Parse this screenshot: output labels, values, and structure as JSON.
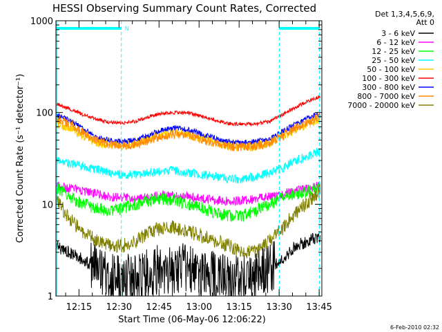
{
  "chart_data": {
    "type": "line",
    "title": "HESSI Observing Summary Count Rates, Corrected",
    "xlabel": "Start Time (06-May-06 12:06:22)",
    "ylabel": "Corrected Count Rate (s⁻¹ detector⁻¹)",
    "yscale": "log",
    "ylim": [
      1,
      1000
    ],
    "xlim": [
      "12:06:22",
      "13:46:00"
    ],
    "x_ticks": [
      "12:15",
      "12:30",
      "12:45",
      "13:00",
      "13:15",
      "13:30",
      "13:45"
    ],
    "y_ticks": [
      "1",
      "10",
      "100",
      "1000"
    ],
    "legend_header": [
      "Det 1,3,4,5,6,9,",
      "Att 0"
    ],
    "legend_position": "right",
    "x_minutes": [
      0,
      5,
      10,
      15,
      20,
      25,
      30,
      35,
      40,
      45,
      50,
      55,
      60,
      65,
      70,
      75,
      80,
      85,
      90,
      95,
      99
    ],
    "series": [
      {
        "name": "3 - 6 keV",
        "color": "#000000",
        "values": [
          3.5,
          3.0,
          2.5,
          2.0,
          1.6,
          1.5,
          1.6,
          1.8,
          2.0,
          2.0,
          2.0,
          1.8,
          1.6,
          1.5,
          1.6,
          1.8,
          2.0,
          2.5,
          3.5,
          4.0,
          4.5
        ]
      },
      {
        "name": "6 - 12 keV",
        "color": "#ff00ff",
        "values": [
          16,
          15,
          14,
          13,
          12,
          12,
          11.5,
          12,
          12.5,
          12.5,
          12,
          11.5,
          11,
          10.8,
          11,
          11.5,
          12,
          13,
          14,
          15,
          16
        ]
      },
      {
        "name": "12 - 25 keV",
        "color": "#00ff00",
        "values": [
          15,
          12,
          10,
          9,
          8.5,
          9,
          10,
          11,
          11.5,
          11,
          10,
          9,
          8,
          7.5,
          7.5,
          8.5,
          10,
          11.5,
          13,
          14,
          15
        ]
      },
      {
        "name": "25 - 50 keV",
        "color": "#00ffff",
        "values": [
          30,
          28,
          26,
          24,
          22,
          21,
          21,
          22,
          23,
          23,
          22,
          21,
          20,
          19,
          19,
          20,
          22,
          25,
          30,
          34,
          38
        ]
      },
      {
        "name": "50 - 100 keV",
        "color": "#ffcc00",
        "values": [
          75,
          68,
          55,
          47,
          45,
          44,
          46,
          52,
          58,
          60,
          57,
          52,
          47,
          43,
          42,
          43,
          47,
          55,
          65,
          75,
          85
        ]
      },
      {
        "name": "100 - 300 keV",
        "color": "#ff0000",
        "values": [
          125,
          110,
          95,
          85,
          78,
          77,
          80,
          90,
          98,
          100,
          98,
          90,
          82,
          76,
          75,
          75,
          80,
          95,
          115,
          135,
          150
        ]
      },
      {
        "name": "300 - 800 keV",
        "color": "#0000ff",
        "values": [
          95,
          82,
          68,
          55,
          50,
          48,
          50,
          57,
          65,
          68,
          65,
          58,
          52,
          48,
          47,
          48,
          52,
          62,
          75,
          88,
          98
        ]
      },
      {
        "name": "800 - 7000 keV",
        "color": "#ff8800",
        "values": [
          85,
          76,
          60,
          50,
          45,
          44,
          45,
          50,
          56,
          58,
          56,
          50,
          46,
          43,
          42,
          43,
          46,
          55,
          68,
          80,
          90
        ]
      },
      {
        "name": "7000 - 20000 keV",
        "color": "#808000",
        "values": [
          11,
          7,
          5,
          4,
          3.5,
          3.5,
          4,
          5,
          5.5,
          5.5,
          5,
          4.5,
          4,
          3.5,
          3,
          3,
          4,
          5.5,
          8,
          11,
          14
        ]
      }
    ],
    "markers": {
      "color": "#00ffff",
      "label": "N"
    }
  },
  "stamp": "6-Feb-2010 02:32"
}
